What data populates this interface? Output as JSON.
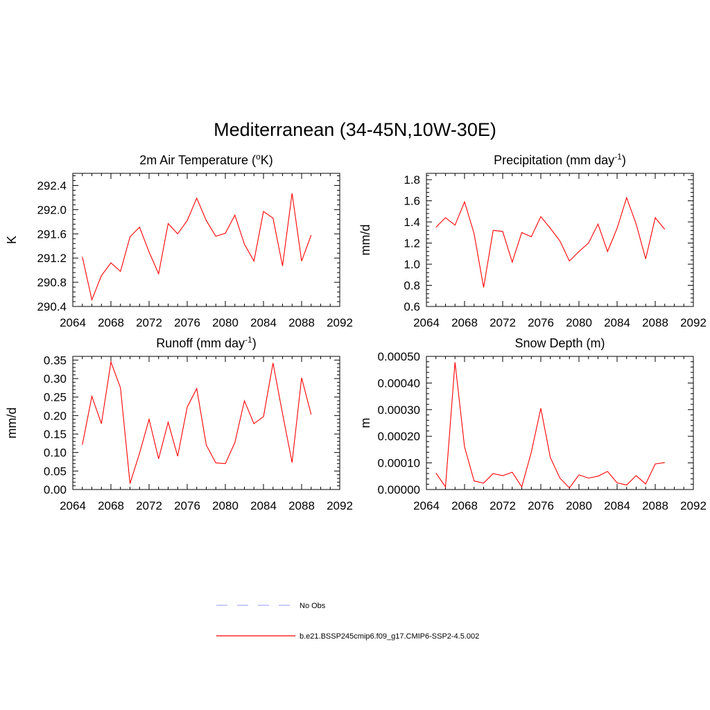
{
  "title": "Mediterranean (34-45N,10W-30E)",
  "chart_data": [
    {
      "type": "line",
      "title": "2m Air Temperature (oK)",
      "title_main": "2m Air Temperature (",
      "title_sup": "o",
      "title_tail": "K)",
      "xlabel": "",
      "ylabel": "K",
      "xlim": [
        2064,
        2092
      ],
      "ylim": [
        290.4,
        292.6
      ],
      "xticks": [
        2064,
        2068,
        2072,
        2076,
        2080,
        2084,
        2088,
        2092
      ],
      "xtick_labels": [
        "2064",
        "2068",
        "2072",
        "2076",
        "2080",
        "2084",
        "2088",
        "2092"
      ],
      "yticks": [
        290.4,
        290.8,
        291.2,
        291.6,
        292.0,
        292.4
      ],
      "ytick_labels": [
        "290.4",
        "290.8",
        "291.2",
        "291.6",
        "292.0",
        "292.4"
      ],
      "series": [
        {
          "name": "b.e21.BSSP245cmip6.f09_g17.CMIP6-SSP2-4.5.002",
          "x": [
            2065,
            2066,
            2067,
            2068,
            2069,
            2070,
            2071,
            2072,
            2073,
            2074,
            2075,
            2076,
            2077,
            2078,
            2079,
            2080,
            2081,
            2082,
            2083,
            2084,
            2085,
            2086,
            2087,
            2088,
            2089
          ],
          "values": [
            291.22,
            290.51,
            290.91,
            291.12,
            290.98,
            291.55,
            291.71,
            291.3,
            290.94,
            291.77,
            291.6,
            291.82,
            292.19,
            291.82,
            291.56,
            291.61,
            291.91,
            291.43,
            291.15,
            291.97,
            291.86,
            291.07,
            292.27,
            291.15,
            291.58
          ]
        }
      ]
    },
    {
      "type": "line",
      "title": "Precipitation (mm day-1)",
      "title_main": "Precipitation (mm day",
      "title_sup": "-1",
      "title_tail": ")",
      "xlabel": "",
      "ylabel": "mm/d",
      "xlim": [
        2064,
        2092
      ],
      "ylim": [
        0.6,
        1.86
      ],
      "xticks": [
        2064,
        2068,
        2072,
        2076,
        2080,
        2084,
        2088,
        2092
      ],
      "xtick_labels": [
        "2064",
        "2068",
        "2072",
        "2076",
        "2080",
        "2084",
        "2088",
        "2092"
      ],
      "yticks": [
        0.6,
        0.8,
        1.0,
        1.2,
        1.4,
        1.6,
        1.8
      ],
      "ytick_labels": [
        "0.6",
        "0.8",
        "1.0",
        "1.2",
        "1.4",
        "1.6",
        "1.8"
      ],
      "series": [
        {
          "name": "b.e21.BSSP245cmip6.f09_g17.CMIP6-SSP2-4.5.002",
          "x": [
            2065,
            2066,
            2067,
            2068,
            2069,
            2070,
            2071,
            2072,
            2073,
            2074,
            2075,
            2076,
            2077,
            2078,
            2079,
            2080,
            2081,
            2082,
            2083,
            2084,
            2085,
            2086,
            2087,
            2088,
            2089
          ],
          "values": [
            1.35,
            1.44,
            1.37,
            1.59,
            1.29,
            0.78,
            1.32,
            1.31,
            1.02,
            1.3,
            1.26,
            1.45,
            1.34,
            1.22,
            1.03,
            1.12,
            1.2,
            1.38,
            1.12,
            1.34,
            1.63,
            1.38,
            1.05,
            1.44,
            1.33
          ]
        }
      ]
    },
    {
      "type": "line",
      "title": "Runoff (mm day-1)",
      "title_main": "Runoff (mm day",
      "title_sup": "-1",
      "title_tail": ")",
      "xlabel": "",
      "ylabel": "mm/d",
      "xlim": [
        2064,
        2092
      ],
      "ylim": [
        0.0,
        0.36
      ],
      "xticks": [
        2064,
        2068,
        2072,
        2076,
        2080,
        2084,
        2088,
        2092
      ],
      "xtick_labels": [
        "2064",
        "2068",
        "2072",
        "2076",
        "2080",
        "2084",
        "2088",
        "2092"
      ],
      "yticks": [
        0.0,
        0.05,
        0.1,
        0.15,
        0.2,
        0.25,
        0.3,
        0.35
      ],
      "ytick_labels": [
        "0.00",
        "0.05",
        "0.10",
        "0.15",
        "0.20",
        "0.25",
        "0.30",
        "0.35"
      ],
      "series": [
        {
          "name": "b.e21.BSSP245cmip6.f09_g17.CMIP6-SSP2-4.5.002",
          "x": [
            2065,
            2066,
            2067,
            2068,
            2069,
            2070,
            2071,
            2072,
            2073,
            2074,
            2075,
            2076,
            2077,
            2078,
            2079,
            2080,
            2081,
            2082,
            2083,
            2084,
            2085,
            2086,
            2087,
            2088,
            2089
          ],
          "values": [
            0.121,
            0.252,
            0.178,
            0.345,
            0.275,
            0.016,
            0.098,
            0.19,
            0.083,
            0.182,
            0.09,
            0.223,
            0.273,
            0.12,
            0.072,
            0.07,
            0.127,
            0.24,
            0.178,
            0.197,
            0.342,
            0.205,
            0.073,
            0.302,
            0.203
          ]
        }
      ]
    },
    {
      "type": "line",
      "title": "Snow Depth (m)",
      "title_main": "Snow Depth (m)",
      "title_sup": "",
      "title_tail": "",
      "xlabel": "",
      "ylabel": "m",
      "xlim": [
        2064,
        2092
      ],
      "ylim": [
        0.0,
        0.0005
      ],
      "xticks": [
        2064,
        2068,
        2072,
        2076,
        2080,
        2084,
        2088,
        2092
      ],
      "xtick_labels": [
        "2064",
        "2068",
        "2072",
        "2076",
        "2080",
        "2084",
        "2088",
        "2092"
      ],
      "yticks": [
        0.0,
        0.0001,
        0.0002,
        0.0003,
        0.0004,
        0.0005
      ],
      "ytick_labels": [
        "0.00000",
        "0.00010",
        "0.00020",
        "0.00030",
        "0.00040",
        "0.00050"
      ],
      "series": [
        {
          "name": "b.e21.BSSP245cmip6.f09_g17.CMIP6-SSP2-4.5.002",
          "x": [
            2065,
            2066,
            2067,
            2068,
            2069,
            2070,
            2071,
            2072,
            2073,
            2074,
            2075,
            2076,
            2077,
            2078,
            2079,
            2080,
            2081,
            2082,
            2083,
            2084,
            2085,
            2086,
            2087,
            2088,
            2089
          ],
          "values": [
            6.2e-05,
            1e-05,
            0.000478,
            0.00016,
            3.2e-05,
            2.4e-05,
            6e-05,
            5.2e-05,
            6.5e-05,
            1e-05,
            0.00014,
            0.000305,
            0.00012,
            4.3e-05,
            6e-06,
            5.5e-05,
            4.3e-05,
            5e-05,
            6.8e-05,
            2.5e-05,
            1.7e-05,
            5.2e-05,
            2.1e-05,
            9.6e-05,
            0.000101
          ]
        }
      ]
    }
  ],
  "legend": {
    "items": [
      {
        "label": "No Obs",
        "style": "dashed",
        "color": "#aaaaff"
      },
      {
        "label": "b.e21.BSSP245cmip6.f09_g17.CMIP6-SSP2-4.5.002",
        "style": "solid",
        "color": "#ff0000"
      }
    ]
  }
}
